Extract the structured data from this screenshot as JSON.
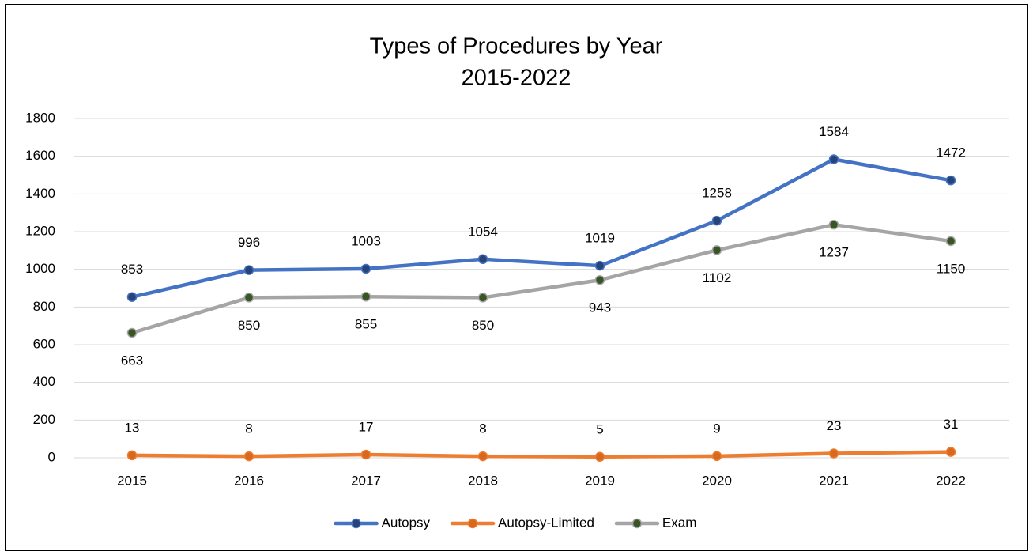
{
  "chart_data": {
    "type": "line",
    "title": "Types of Procedures by Year",
    "subtitle": "2015-2022",
    "categories": [
      "2015",
      "2016",
      "2017",
      "2018",
      "2019",
      "2020",
      "2021",
      "2022"
    ],
    "series": [
      {
        "name": "Autopsy",
        "color": "#4472c4",
        "marker_color": "#264478",
        "label_position": "above",
        "values": [
          853,
          996,
          1003,
          1054,
          1019,
          1258,
          1584,
          1472
        ]
      },
      {
        "name": "Autopsy-Limited",
        "color": "#ed7d31",
        "marker_color": "#d8681e",
        "label_position": "above",
        "values": [
          13,
          8,
          17,
          8,
          5,
          9,
          23,
          31
        ]
      },
      {
        "name": "Exam",
        "color": "#a5a5a5",
        "marker_color": "#375623",
        "label_position": "below",
        "values": [
          663,
          850,
          855,
          850,
          943,
          1102,
          1237,
          1150
        ]
      }
    ],
    "ylim": [
      0,
      1800
    ],
    "yticks": [
      0,
      200,
      400,
      600,
      800,
      1000,
      1200,
      1400,
      1600,
      1800
    ],
    "grid": true,
    "legend": "bottom"
  }
}
